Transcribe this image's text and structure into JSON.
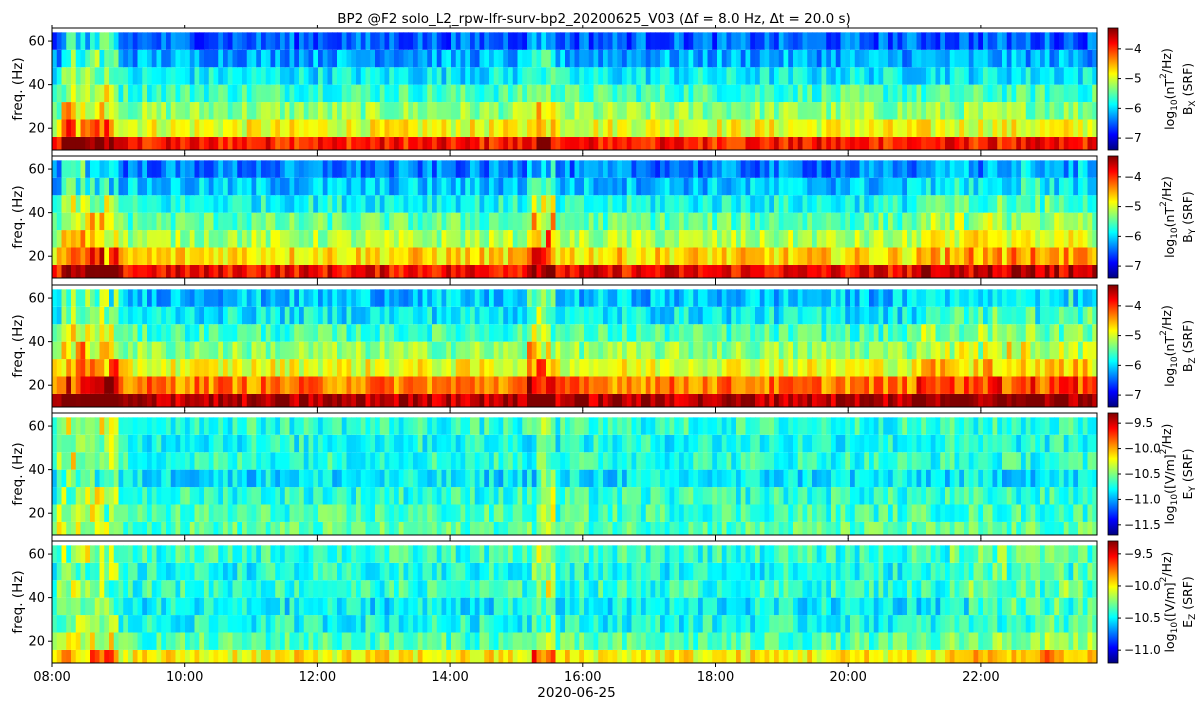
{
  "figure": {
    "title": "BP2 @F2   solo_L2_rpw-lfr-surv-bp2_20200625_V03     (Δf = 8.0 Hz, Δt = 20.0 s)"
  },
  "colors": {
    "colormap": "jet",
    "stops": [
      "#00007f",
      "#0000ff",
      "#007fff",
      "#00ffff",
      "#7fff7f",
      "#ffff00",
      "#ff7f00",
      "#ff0000",
      "#7f0000"
    ]
  },
  "chart_data": [
    {
      "type": "heatmap",
      "panel": "Bx",
      "ylabel": "freq. (Hz)",
      "yticks": [
        20,
        40,
        60
      ],
      "ylim": [
        10,
        66
      ],
      "freq_bins_hz": [
        12,
        20,
        28,
        36,
        44,
        52,
        60
      ],
      "xlim": [
        "08:00",
        "23:45"
      ],
      "colorbar": {
        "label_main": "log",
        "label_sub": "10",
        "label_rest": "(nT",
        "label_sup": "2",
        "label_end": "/Hz)",
        "label_line2": "B",
        "label_line2_sub": "X",
        "label_line2_end": " (SRF)",
        "range": [
          -7.4,
          -3.3
        ],
        "ticks": [
          -7,
          -6,
          -5,
          -4
        ],
        "tick_labels": [
          "−7",
          "−6",
          "−5",
          "−4"
        ]
      },
      "mean_level_by_freq": [
        -3.9,
        -4.9,
        -5.3,
        -5.6,
        -5.9,
        -6.2,
        -6.5
      ],
      "events": [
        {
          "start": "08:10",
          "end": "09:00",
          "boost": 1.0
        },
        {
          "start": "15:10",
          "end": "15:35",
          "boost": 0.6
        }
      ]
    },
    {
      "type": "heatmap",
      "panel": "By",
      "ylabel": "freq. (Hz)",
      "yticks": [
        20,
        40,
        60
      ],
      "ylim": [
        10,
        66
      ],
      "freq_bins_hz": [
        12,
        20,
        28,
        36,
        44,
        52,
        60
      ],
      "xlim": [
        "08:00",
        "23:45"
      ],
      "colorbar": {
        "label_main": "log",
        "label_sub": "10",
        "label_rest": "(nT",
        "label_sup": "2",
        "label_end": "/Hz)",
        "label_line2": "B",
        "label_line2_sub": "Y",
        "label_line2_end": " (SRF)",
        "range": [
          -7.4,
          -3.3
        ],
        "ticks": [
          -7,
          -6,
          -5,
          -4
        ],
        "tick_labels": [
          "−7",
          "−6",
          "−5",
          "−4"
        ]
      },
      "mean_level_by_freq": [
        -3.8,
        -4.7,
        -5.2,
        -5.5,
        -5.8,
        -6.1,
        -6.4
      ],
      "events": [
        {
          "start": "08:10",
          "end": "09:00",
          "boost": 1.0
        },
        {
          "start": "15:10",
          "end": "15:35",
          "boost": 1.0
        },
        {
          "start": "21:00",
          "end": "23:45",
          "boost": 0.4
        }
      ]
    },
    {
      "type": "heatmap",
      "panel": "Bz",
      "ylabel": "freq. (Hz)",
      "yticks": [
        20,
        40,
        60
      ],
      "ylim": [
        10,
        66
      ],
      "freq_bins_hz": [
        12,
        20,
        28,
        36,
        44,
        52,
        60
      ],
      "xlim": [
        "08:00",
        "23:45"
      ],
      "colorbar": {
        "label_main": "log",
        "label_sub": "10",
        "label_rest": "(nT",
        "label_sup": "2",
        "label_end": "/Hz)",
        "label_line2": "B",
        "label_line2_sub": "Z",
        "label_line2_end": " (SRF)",
        "range": [
          -7.4,
          -3.3
        ],
        "ticks": [
          -7,
          -6,
          -5,
          -4
        ],
        "tick_labels": [
          "−7",
          "−6",
          "−5",
          "−4"
        ]
      },
      "mean_level_by_freq": [
        -3.5,
        -4.3,
        -4.9,
        -5.3,
        -5.6,
        -5.9,
        -6.1
      ],
      "events": [
        {
          "start": "08:10",
          "end": "09:00",
          "boost": 1.0
        },
        {
          "start": "15:10",
          "end": "15:35",
          "boost": 1.0
        },
        {
          "start": "21:00",
          "end": "23:45",
          "boost": 0.5
        }
      ]
    },
    {
      "type": "heatmap",
      "panel": "Ey",
      "ylabel": "freq. (Hz)",
      "yticks": [
        20,
        40,
        60
      ],
      "ylim": [
        10,
        66
      ],
      "freq_bins_hz": [
        12,
        20,
        28,
        36,
        44,
        52,
        60
      ],
      "xlim": [
        "08:00",
        "23:45"
      ],
      "colorbar": {
        "label_main": "log",
        "label_sub": "10",
        "label_rest": "([V/m]",
        "label_sup": "2",
        "label_end": "/Hz)",
        "label_line2": "E",
        "label_line2_sub": "Y",
        "label_line2_end": " (SRF)",
        "range": [
          -11.7,
          -9.3
        ],
        "ticks": [
          -11.5,
          -11.0,
          -10.5,
          -10.0,
          -9.5
        ],
        "tick_labels": [
          "−11.5",
          "−11.0",
          "−10.5",
          "−10.0",
          "−9.5"
        ]
      },
      "mean_level_by_freq": [
        -10.6,
        -10.65,
        -10.7,
        -10.85,
        -10.7,
        -10.75,
        -10.7
      ],
      "events": [
        {
          "start": "08:05",
          "end": "09:00",
          "boost": 0.8
        },
        {
          "start": "15:20",
          "end": "15:35",
          "boost": 0.8
        }
      ]
    },
    {
      "type": "heatmap",
      "panel": "Ez",
      "ylabel": "freq. (Hz)",
      "yticks": [
        20,
        40,
        60
      ],
      "ylim": [
        10,
        66
      ],
      "freq_bins_hz": [
        12,
        20,
        28,
        36,
        44,
        52,
        60
      ],
      "xlim": [
        "08:00",
        "23:45"
      ],
      "xticks": [
        "08:00",
        "10:00",
        "12:00",
        "14:00",
        "16:00",
        "18:00",
        "20:00",
        "22:00"
      ],
      "xlabel": "2020-06-25",
      "colorbar": {
        "label_main": "log",
        "label_sub": "10",
        "label_rest": "([V/m]",
        "label_sup": "2",
        "label_end": "/Hz)",
        "label_line2": "E",
        "label_line2_sub": "Z",
        "label_line2_end": " (SRF)",
        "range": [
          -11.2,
          -9.3
        ],
        "ticks": [
          -11.0,
          -10.5,
          -10.0,
          -9.5
        ],
        "tick_labels": [
          "−11.0",
          "−10.5",
          "−10.0",
          "−9.5"
        ]
      },
      "mean_level_by_freq": [
        -10.0,
        -10.35,
        -10.45,
        -10.5,
        -10.4,
        -10.45,
        -10.4
      ],
      "events": [
        {
          "start": "08:05",
          "end": "09:00",
          "boost": 0.8
        },
        {
          "start": "15:15",
          "end": "15:35",
          "boost": 0.8
        },
        {
          "start": "21:30",
          "end": "23:45",
          "boost": 0.4
        }
      ]
    }
  ]
}
